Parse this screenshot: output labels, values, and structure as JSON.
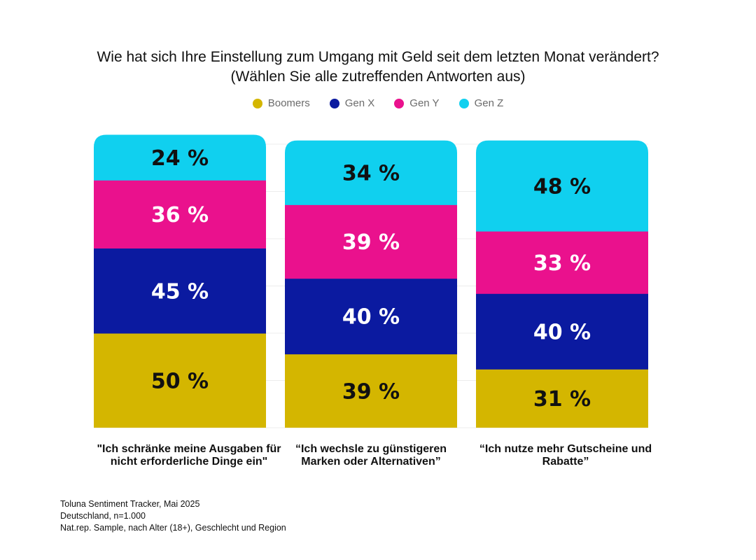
{
  "title_line1": "Wie hat sich Ihre Einstellung zum Umgang mit Geld seit dem letzten Monat verändert?",
  "title_line2": "(Wählen Sie alle zutreffenden Antworten aus)",
  "legend": [
    {
      "name": "Boomers",
      "color": "#d4b600"
    },
    {
      "name": "Gen X",
      "color": "#0b1aa0"
    },
    {
      "name": "Gen Y",
      "color": "#ea118d"
    },
    {
      "name": "Gen Z",
      "color": "#10d0ef"
    }
  ],
  "chart_data": {
    "type": "bar",
    "stacked": true,
    "categories": [
      "\"Ich schränke meine Ausgaben für nicht erforderliche Dinge ein\"",
      "“Ich wechsle zu günstigeren Marken oder Alternativen”",
      "“Ich nutze mehr Gutscheine und Rabatte”"
    ],
    "series": [
      {
        "name": "Boomers",
        "color": "#d4b600",
        "values": [
          50,
          39,
          31
        ],
        "labels": [
          "50 %",
          "39 %",
          "31 %"
        ],
        "label_color": "#111111"
      },
      {
        "name": "Gen X",
        "color": "#0b1aa0",
        "values": [
          45,
          40,
          40
        ],
        "labels": [
          "45 %",
          "40 %",
          "40 %"
        ],
        "label_color": "#ffffff"
      },
      {
        "name": "Gen Y",
        "color": "#ea118d",
        "values": [
          36,
          39,
          33
        ],
        "labels": [
          "36 %",
          "39 %",
          "33 %"
        ],
        "label_color": "#ffffff"
      },
      {
        "name": "Gen Z",
        "color": "#10d0ef",
        "values": [
          24,
          34,
          48
        ],
        "labels": [
          "24 %",
          "34 %",
          "48 %"
        ],
        "label_color": "#111111"
      }
    ],
    "grid": true,
    "legend_position": "top-center"
  },
  "source": {
    "line1": "Toluna Sentiment Tracker,  Mai 2025",
    "line2": "Deutschland, n=1.000",
    "line3": "Nat.rep. Sample, nach Alter (18+), Geschlecht und Region"
  }
}
